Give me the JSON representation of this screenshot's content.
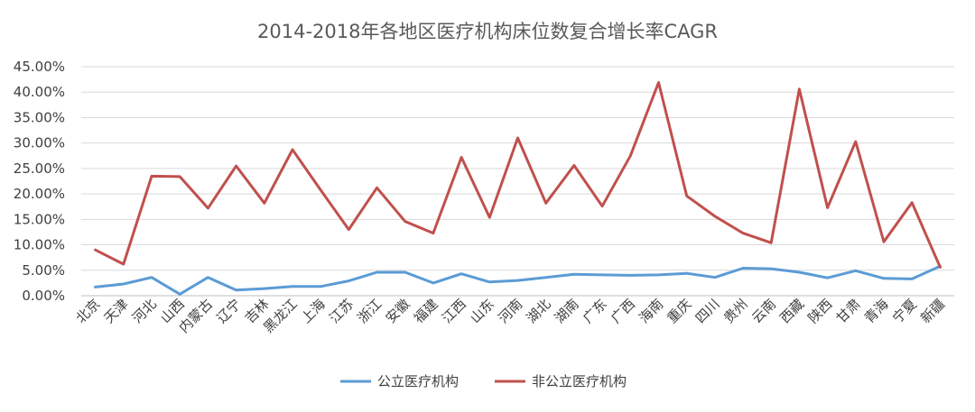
{
  "chart_data": {
    "type": "line",
    "title": "2014-2018年各地区医疗机构床位数复合增长率CAGR",
    "xlabel": "",
    "ylabel": "",
    "ylim": [
      0,
      45
    ],
    "yticks": [
      "0.00%",
      "5.00%",
      "10.00%",
      "15.00%",
      "20.00%",
      "25.00%",
      "30.00%",
      "35.00%",
      "40.00%",
      "45.00%"
    ],
    "grid": true,
    "legend": "bottom",
    "categories": [
      "北京",
      "天津",
      "河北",
      "山西",
      "内蒙古",
      "辽宁",
      "吉林",
      "黑龙江",
      "上海",
      "江苏",
      "浙江",
      "安徽",
      "福建",
      "江西",
      "山东",
      "河南",
      "湖北",
      "湖南",
      "广东",
      "广西",
      "海南",
      "重庆",
      "四川",
      "贵州",
      "云南",
      "西藏",
      "陕西",
      "甘肃",
      "青海",
      "宁夏",
      "新疆"
    ],
    "series": [
      {
        "name": "公立医疗机构",
        "color": "#5b9bd5",
        "values": [
          1.7,
          2.3,
          3.6,
          0.3,
          3.6,
          1.1,
          1.4,
          1.8,
          1.8,
          2.9,
          4.6,
          4.6,
          2.5,
          4.3,
          2.7,
          3.0,
          3.6,
          4.2,
          4.1,
          4.0,
          4.1,
          4.4,
          3.6,
          5.4,
          5.3,
          4.6,
          3.5,
          4.9,
          3.4,
          3.3,
          5.8
        ]
      },
      {
        "name": "非公立医疗机构",
        "color": "#c0504d",
        "values": [
          9.0,
          6.2,
          23.5,
          23.4,
          17.2,
          25.5,
          18.2,
          28.7,
          20.8,
          13.0,
          21.2,
          14.6,
          12.3,
          27.2,
          15.4,
          31.0,
          18.2,
          25.6,
          17.6,
          27.5,
          41.9,
          19.6,
          15.6,
          12.3,
          10.4,
          40.6,
          17.3,
          30.3,
          10.6,
          18.3,
          5.6
        ]
      }
    ]
  }
}
